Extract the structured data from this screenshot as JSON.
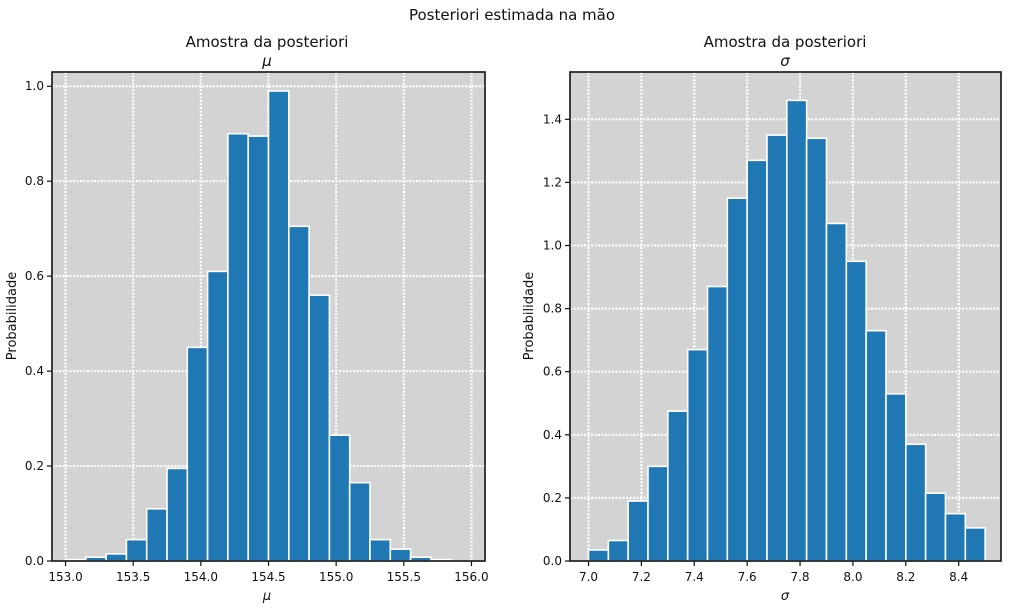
{
  "figure": {
    "suptitle": "Posteriori estimada na mão"
  },
  "chart_data": [
    {
      "type": "bar",
      "title": "Amostra da posteriori",
      "subtitle": "μ",
      "xlabel": "μ",
      "ylabel": "Probabilidade",
      "xlim": [
        152.9,
        156.1
      ],
      "ylim": [
        0,
        1.03
      ],
      "xticks": [
        153.0,
        153.5,
        154.0,
        154.5,
        155.0,
        155.5,
        156.0
      ],
      "xtick_labels": [
        "153.0",
        "153.5",
        "154.0",
        "154.5",
        "155.0",
        "155.5",
        "156.0"
      ],
      "yticks": [
        0,
        0.2,
        0.4,
        0.6,
        0.8,
        1.0
      ],
      "ytick_labels": [
        "0.0",
        "0.2",
        "0.4",
        "0.6",
        "0.8",
        "1.0"
      ],
      "bin_start": 153.0,
      "bin_width": 0.15,
      "values": [
        0.003,
        0.008,
        0.015,
        0.045,
        0.11,
        0.195,
        0.45,
        0.61,
        0.9,
        0.895,
        0.99,
        0.705,
        0.56,
        0.265,
        0.165,
        0.045,
        0.025,
        0.008,
        0.003
      ],
      "bar_color": "#1f77b4",
      "background": "#d3d3d3",
      "grid": true
    },
    {
      "type": "bar",
      "title": "Amostra da posteriori",
      "subtitle": "σ",
      "xlabel": "σ",
      "ylabel": "Probabilidade",
      "xlim": [
        6.93,
        8.56
      ],
      "ylim": [
        0,
        1.55
      ],
      "xticks": [
        7.0,
        7.2,
        7.4,
        7.6,
        7.8,
        8.0,
        8.2,
        8.4
      ],
      "xtick_labels": [
        "7.0",
        "7.2",
        "7.4",
        "7.6",
        "7.8",
        "8.0",
        "8.2",
        "8.4"
      ],
      "yticks": [
        0,
        0.2,
        0.4,
        0.6,
        0.8,
        1.0,
        1.2,
        1.4
      ],
      "ytick_labels": [
        "0.0",
        "0.2",
        "0.4",
        "0.6",
        "0.8",
        "1.0",
        "1.2",
        "1.4"
      ],
      "bin_start": 7.0,
      "bin_width": 0.075,
      "values": [
        0.035,
        0.065,
        0.19,
        0.3,
        0.475,
        0.67,
        0.87,
        1.15,
        1.27,
        1.35,
        1.46,
        1.34,
        1.07,
        0.95,
        0.73,
        0.53,
        0.37,
        0.215,
        0.15,
        0.105
      ],
      "bar_color": "#1f77b4",
      "background": "#d3d3d3",
      "grid": true
    }
  ]
}
